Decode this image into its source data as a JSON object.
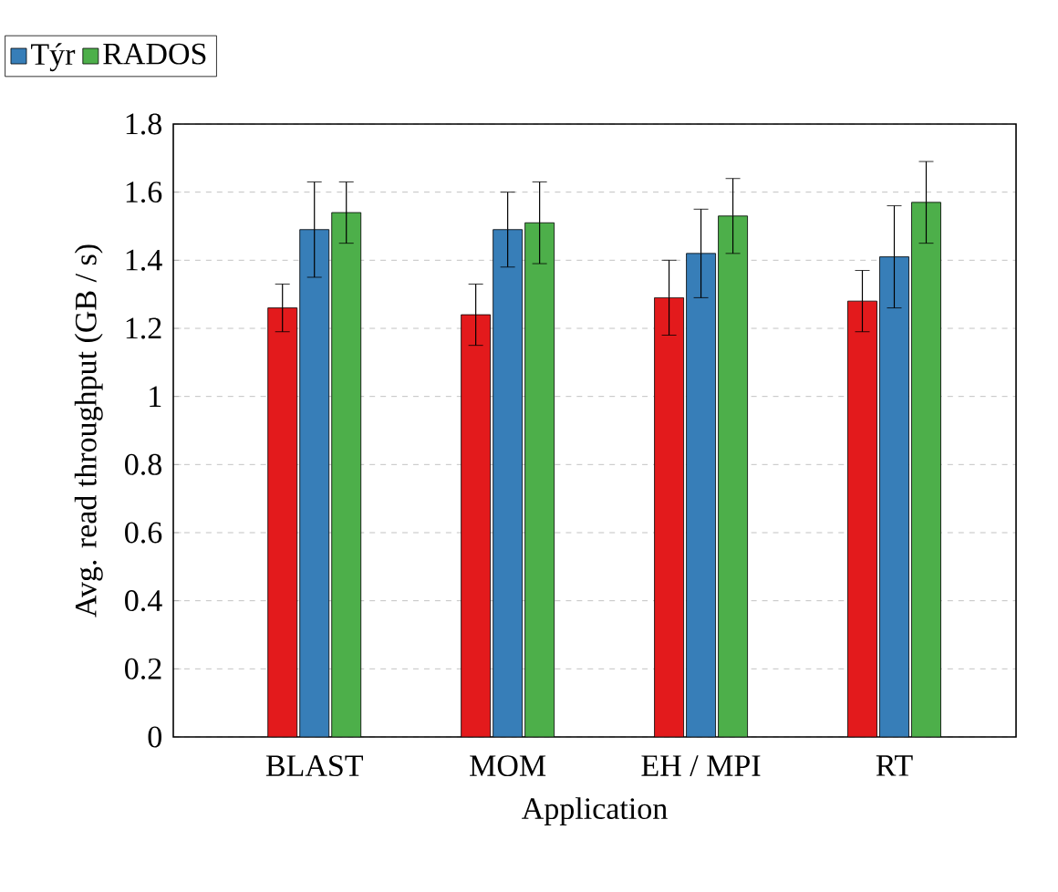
{
  "chart_data": {
    "type": "bar",
    "xlabel": "Application",
    "ylabel": "Avg. read throughput (GB / s)",
    "categories": [
      "BLAST",
      "MOM",
      "EH / MPI",
      "RT"
    ],
    "series": [
      {
        "color": "#e31a1c",
        "values": [
          1.26,
          1.24,
          1.29,
          1.28
        ],
        "errors": [
          0.07,
          0.09,
          0.11,
          0.09
        ]
      },
      {
        "name": "Týr",
        "color": "#377eb8",
        "values": [
          1.49,
          1.49,
          1.42,
          1.41
        ],
        "errors": [
          0.14,
          0.11,
          0.13,
          0.15
        ]
      },
      {
        "name": "RADOS",
        "color": "#4daf4a",
        "values": [
          1.54,
          1.51,
          1.53,
          1.57
        ],
        "errors": [
          0.09,
          0.12,
          0.11,
          0.12
        ]
      }
    ],
    "ylim": [
      0,
      1.8
    ],
    "yticks": [
      0,
      0.2,
      0.4,
      0.6,
      0.8,
      1,
      1.2,
      1.4,
      1.6,
      1.8
    ],
    "grid": "y",
    "legend": "top left"
  }
}
